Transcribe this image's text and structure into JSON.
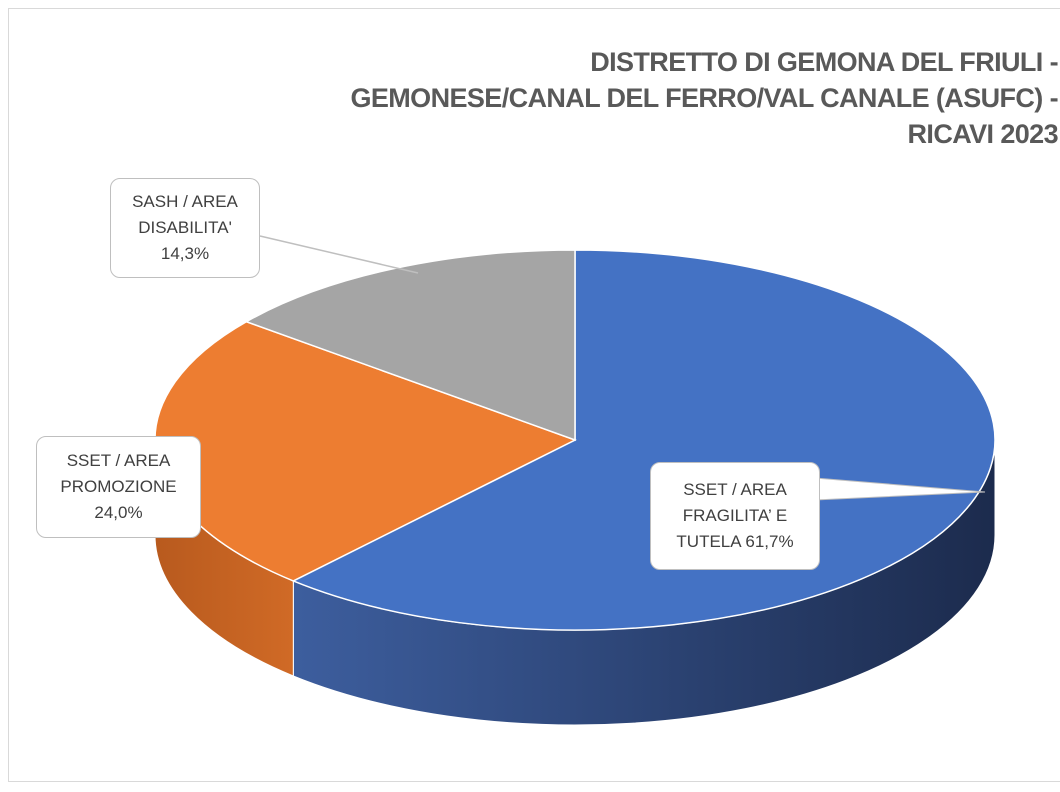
{
  "chart_data": {
    "type": "pie3d",
    "title": "DISTRETTO DI GEMONA DEL FRIULI -\nGEMONESE/CANAL DEL FERRO/VAL CANALE (ASUFC) -\nRICAVI 2023",
    "categories": [
      "SSET / AREA FRAGILITA’ E TUTELA",
      "SSET / AREA PROMOZIONE",
      "SASH / AREA DISABILITA'"
    ],
    "values": [
      61.7,
      24.0,
      14.3
    ],
    "value_labels": [
      "61,7%",
      "24,0%",
      "14,3%"
    ],
    "colors": [
      "#4472c4",
      "#ed7d31",
      "#a5a5a5"
    ]
  }
}
